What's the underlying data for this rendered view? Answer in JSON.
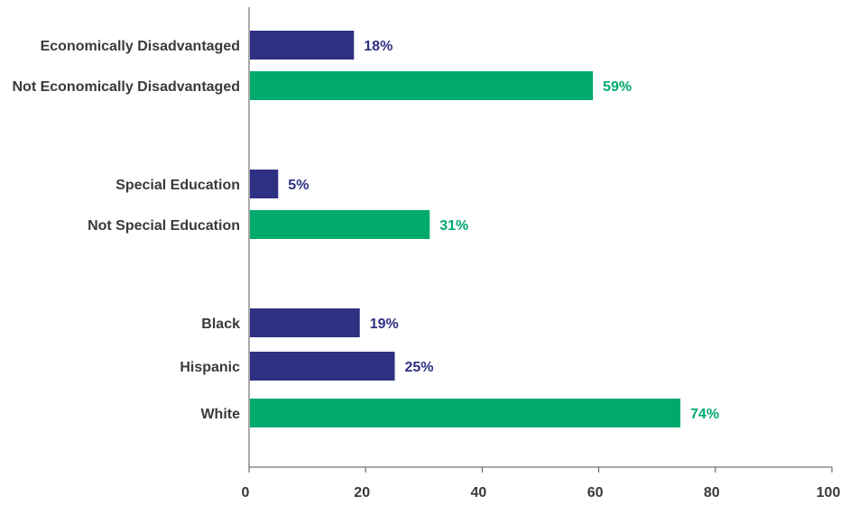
{
  "chart_data": {
    "type": "bar",
    "orientation": "horizontal",
    "categories": [
      "Economically Disadvantaged",
      "Not Economically Disadvantaged",
      "Special Education",
      "Not Special Education",
      "Black",
      "Hispanic",
      "White"
    ],
    "groups": [
      {
        "start": 0,
        "count": 2
      },
      {
        "start": 2,
        "count": 2
      },
      {
        "start": 4,
        "count": 3
      }
    ],
    "values": [
      18,
      59,
      5,
      31,
      19,
      25,
      74
    ],
    "value_labels": [
      "18%",
      "59%",
      "5%",
      "31%",
      "19%",
      "25%",
      "74%"
    ],
    "bar_colors": [
      "#2e3181",
      "#00aa6c",
      "#2e3181",
      "#00aa6c",
      "#2e3181",
      "#2e3181",
      "#00aa6c"
    ],
    "xlim": [
      0,
      100
    ],
    "x_ticks": [
      0,
      20,
      40,
      60,
      80,
      100
    ],
    "x_tick_labels": [
      "0",
      "20",
      "40",
      "60",
      "80",
      "100"
    ],
    "grid": false,
    "title": "",
    "xlabel": "",
    "ylabel": ""
  },
  "colors": {
    "focal": "#2e3181",
    "comparison": "#00aa6c",
    "axis": "#555555",
    "text": "#3a3a3a"
  }
}
